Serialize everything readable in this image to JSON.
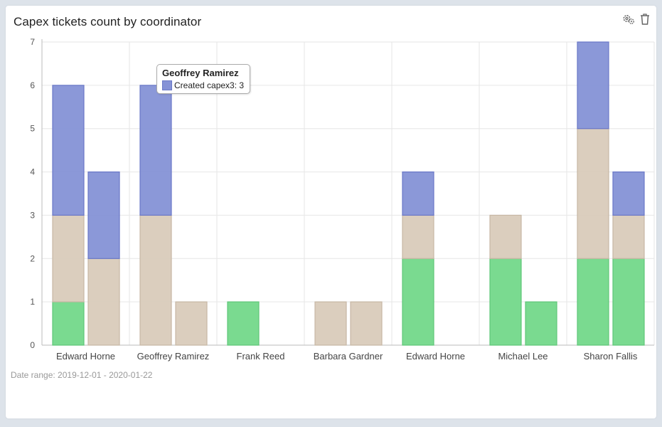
{
  "widget": {
    "title": "Capex tickets count by coordinator",
    "date_range": "Date range: 2019-12-01 - 2020-01-22",
    "settings_icon": "gears-icon",
    "delete_icon": "trash-icon"
  },
  "tooltip": {
    "title": "Geoffrey Ramirez",
    "series": "Created capex3",
    "value": "3",
    "text": "Created capex3: 3",
    "color": "#8592d6"
  },
  "chart_data": {
    "type": "bar",
    "stacked": true,
    "title": "Capex tickets count by coordinator",
    "categories": [
      "Edward Horne",
      "Geoffrey Ramirez",
      "Frank Reed",
      "Barbara Gardner",
      "Edward Horne",
      "Michael Lee",
      "Sharon Fallis"
    ],
    "ylim": [
      0,
      7
    ],
    "yticks": [
      0,
      1,
      2,
      3,
      4,
      5,
      6,
      7
    ],
    "grid": true,
    "bars_per_category": 2,
    "series": [
      {
        "color": "#73d88a",
        "values": [
          [
            1,
            0
          ],
          [
            0,
            0
          ],
          [
            1,
            0
          ],
          [
            0,
            0
          ],
          [
            2,
            0
          ],
          [
            2,
            1
          ],
          [
            2,
            2
          ]
        ]
      },
      {
        "color": "#d9cbbb",
        "values": [
          [
            2,
            2
          ],
          [
            3,
            1
          ],
          [
            0,
            0
          ],
          [
            1,
            1
          ],
          [
            1,
            0
          ],
          [
            1,
            0
          ],
          [
            3,
            1
          ]
        ]
      },
      {
        "name": "Created capex3",
        "color": "#8592d6",
        "values": [
          [
            3,
            2
          ],
          [
            3,
            0
          ],
          [
            0,
            0
          ],
          [
            0,
            0
          ],
          [
            1,
            0
          ],
          [
            0,
            0
          ],
          [
            2,
            1
          ]
        ]
      }
    ]
  }
}
